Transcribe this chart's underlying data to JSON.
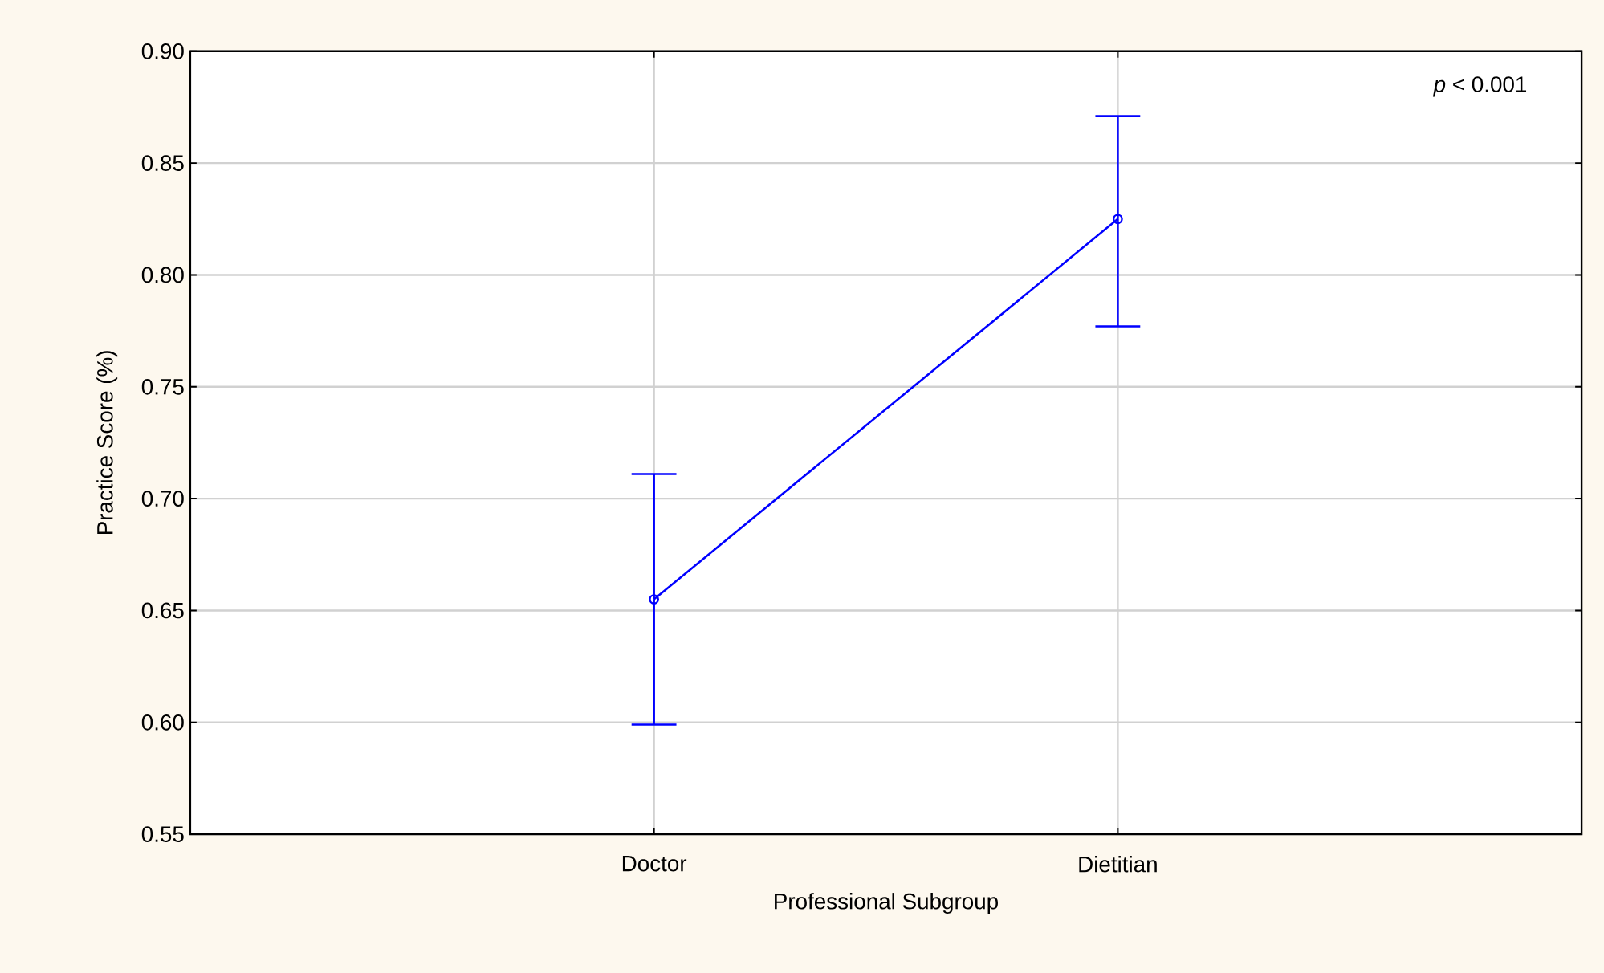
{
  "chart_data": {
    "type": "line",
    "categories": [
      "Doctor",
      "Dietitian"
    ],
    "xlabel": "Professional Subgroup",
    "ylabel": "Practice Score (%)",
    "series": [
      {
        "color": "#0000ff",
        "values": [
          0.655,
          0.825
        ],
        "errors": [
          [
            0.599,
            0.711
          ],
          [
            0.777,
            0.871
          ]
        ],
        "marker": "circle"
      }
    ],
    "ylim": [
      0.55,
      0.9
    ],
    "yticks": [
      {
        "value": 0.55,
        "label": "0.55"
      },
      {
        "value": 0.6,
        "label": "0.60"
      },
      {
        "value": 0.65,
        "label": "0.65"
      },
      {
        "value": 0.7,
        "label": "0.70"
      },
      {
        "value": 0.75,
        "label": "0.75"
      },
      {
        "value": 0.8,
        "label": "0.80"
      },
      {
        "value": 0.85,
        "label": "0.85"
      },
      {
        "value": 0.9,
        "label": "0.90"
      }
    ],
    "grid": true,
    "annotations": [
      "*p* < 0.001"
    ]
  }
}
